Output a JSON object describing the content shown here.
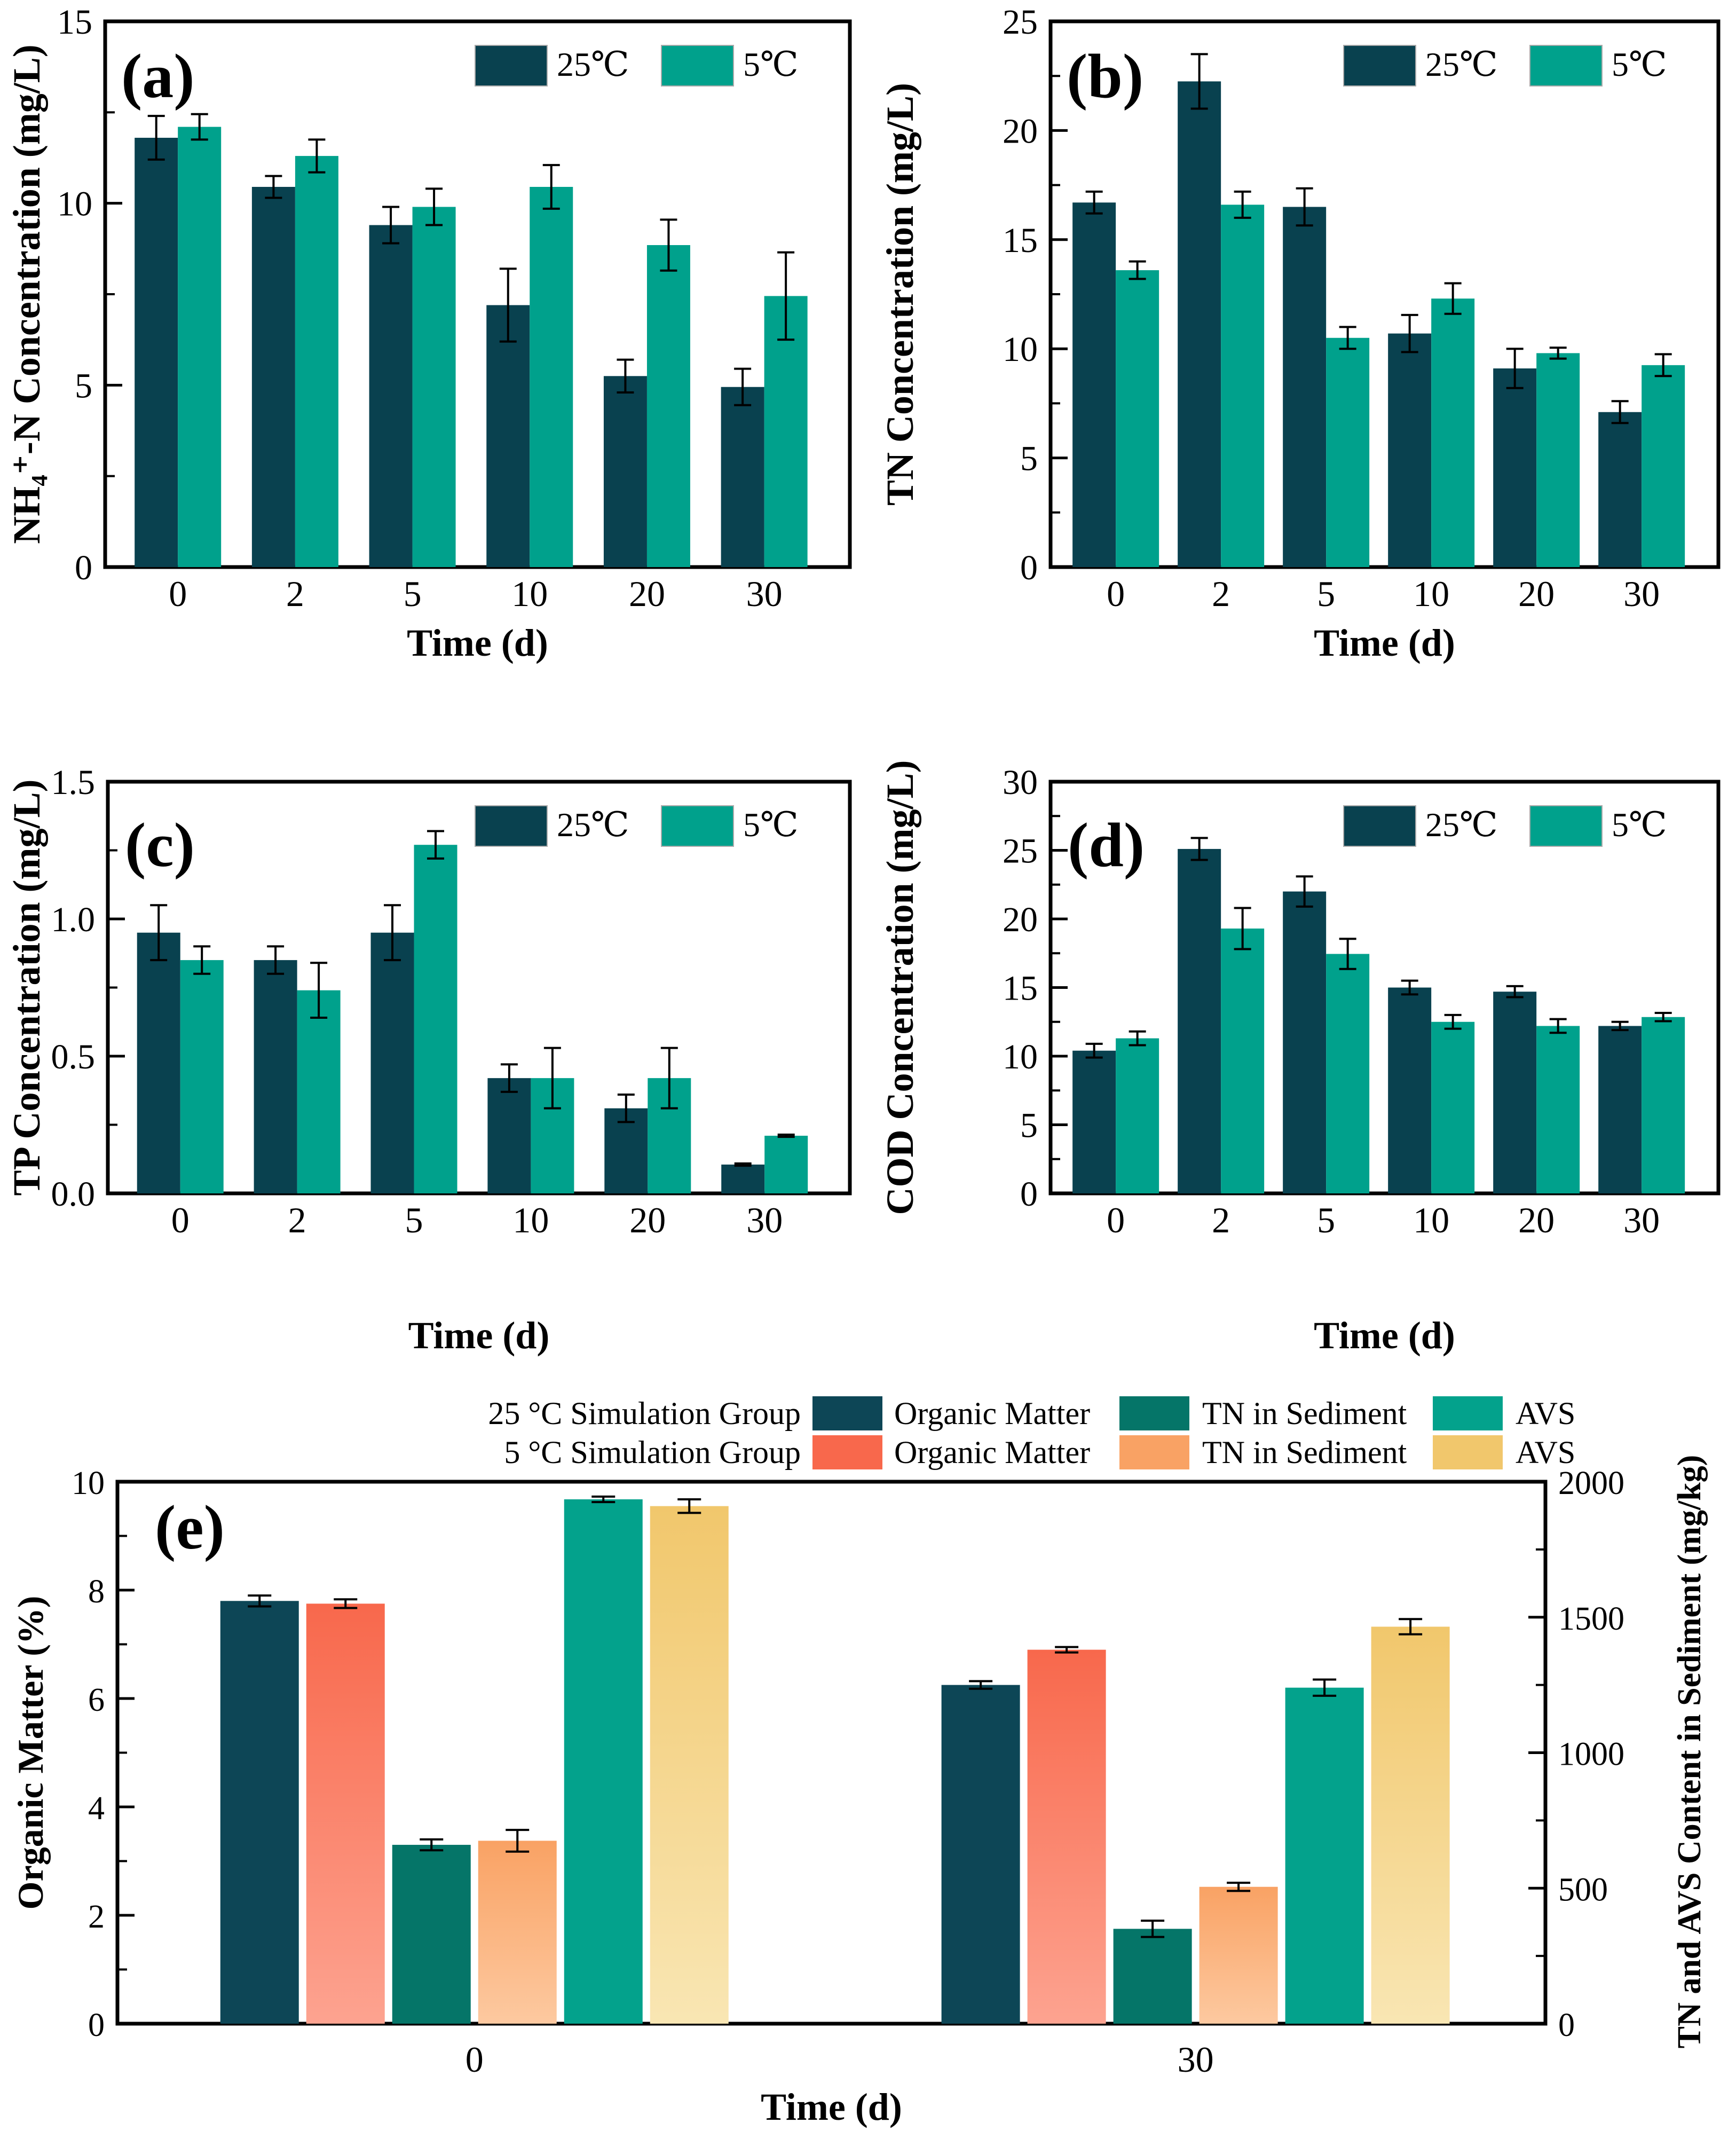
{
  "figure": {
    "background": "#ffffff",
    "accent_colors": {
      "dark_teal_25C": "#09414f",
      "green_5C": "#00a18c",
      "tn_teal": "#057568",
      "avs_green": "#03a28c",
      "coral": "#f8684c",
      "orange": "#f9a264",
      "yellow": "#f1c76c"
    }
  },
  "chart_data": [
    {
      "id": "a",
      "type": "bar",
      "panel_label": "(a)",
      "xlabel": "Time (d)",
      "ylabel": "NH₄⁺-N Concentration (mg/L)",
      "categories": [
        "0",
        "2",
        "5",
        "10",
        "20",
        "30"
      ],
      "ylim": [
        0,
        15
      ],
      "yticks": [
        "0",
        "5",
        "10",
        "15"
      ],
      "grid": false,
      "legend": {
        "position": "top-right",
        "entries": [
          "25℃",
          "5℃"
        ]
      },
      "series": [
        {
          "name": "25℃",
          "color": "#09414f",
          "values": [
            11.8,
            10.45,
            9.4,
            7.2,
            5.25,
            4.95
          ],
          "errors": [
            0.6,
            0.3,
            0.5,
            1.0,
            0.45,
            0.5
          ]
        },
        {
          "name": "5℃",
          "color": "#00a18c",
          "values": [
            12.1,
            11.3,
            9.9,
            10.45,
            8.85,
            7.45
          ],
          "errors": [
            0.35,
            0.45,
            0.5,
            0.6,
            0.7,
            1.2
          ]
        }
      ]
    },
    {
      "id": "b",
      "type": "bar",
      "panel_label": "(b)",
      "xlabel": "Time (d)",
      "ylabel": "TN Concentration (mg/L)",
      "categories": [
        "0",
        "2",
        "5",
        "10",
        "20",
        "30"
      ],
      "ylim": [
        0,
        25
      ],
      "yticks": [
        "0",
        "5",
        "10",
        "15",
        "20",
        "25"
      ],
      "grid": false,
      "legend": {
        "position": "top-right",
        "entries": [
          "25℃",
          "5℃"
        ]
      },
      "series": [
        {
          "name": "25℃",
          "color": "#09414f",
          "values": [
            16.7,
            22.25,
            16.5,
            10.7,
            9.1,
            7.1
          ],
          "errors": [
            0.5,
            1.25,
            0.85,
            0.85,
            0.9,
            0.5
          ]
        },
        {
          "name": "5℃",
          "color": "#00a18c",
          "values": [
            13.6,
            16.6,
            10.5,
            12.3,
            9.8,
            9.25
          ],
          "errors": [
            0.4,
            0.6,
            0.5,
            0.7,
            0.25,
            0.5
          ]
        }
      ]
    },
    {
      "id": "c",
      "type": "bar",
      "panel_label": "(c)",
      "xlabel": "Time (d)",
      "ylabel": "TP Concentration (mg/L)",
      "categories": [
        "0",
        "2",
        "5",
        "10",
        "20",
        "30"
      ],
      "ylim": [
        0,
        1.5
      ],
      "yticks": [
        "0.0",
        "0.5",
        "1.0",
        "1.5"
      ],
      "grid": false,
      "legend": {
        "position": "top-right",
        "entries": [
          "25℃",
          "5℃"
        ]
      },
      "series": [
        {
          "name": "25℃",
          "color": "#09414f",
          "values": [
            0.95,
            0.85,
            0.95,
            0.42,
            0.31,
            0.105
          ],
          "errors": [
            0.1,
            0.05,
            0.1,
            0.05,
            0.05,
            0.004
          ]
        },
        {
          "name": "5℃",
          "color": "#00a18c",
          "values": [
            0.85,
            0.74,
            1.27,
            0.42,
            0.42,
            0.21
          ],
          "errors": [
            0.05,
            0.1,
            0.05,
            0.11,
            0.11,
            0.004
          ]
        }
      ]
    },
    {
      "id": "d",
      "type": "bar",
      "panel_label": "(d)",
      "xlabel": "Time (d)",
      "ylabel": "COD Concentration (mg/L)",
      "categories": [
        "0",
        "2",
        "5",
        "10",
        "20",
        "30"
      ],
      "ylim": [
        0,
        30
      ],
      "yticks": [
        "0",
        "5",
        "10",
        "15",
        "20",
        "25",
        "30"
      ],
      "grid": false,
      "legend": {
        "position": "top-right",
        "entries": [
          "25℃",
          "5℃"
        ]
      },
      "series": [
        {
          "name": "25℃",
          "color": "#09414f",
          "values": [
            10.4,
            25.1,
            22.0,
            15.0,
            14.7,
            12.2
          ],
          "errors": [
            0.5,
            0.8,
            1.1,
            0.5,
            0.4,
            0.3
          ]
        },
        {
          "name": "5℃",
          "color": "#00a18c",
          "values": [
            11.3,
            19.3,
            17.45,
            12.5,
            12.2,
            12.85
          ],
          "errors": [
            0.5,
            1.5,
            1.1,
            0.5,
            0.5,
            0.3
          ]
        }
      ]
    },
    {
      "id": "e",
      "type": "bar",
      "panel_label": "(e)",
      "xlabel": "Time (d)",
      "ylabel_left": "Organic Matter (%)",
      "ylabel_right": "TN and AVS Content in Sediment (mg/kg)",
      "categories": [
        "0",
        "30"
      ],
      "ylim": [
        0,
        10
      ],
      "yticks": [
        "0",
        "2",
        "4",
        "6",
        "8",
        "10"
      ],
      "ylim_right": [
        0,
        2000
      ],
      "yticks_right": [
        "0",
        "500",
        "1000",
        "1500",
        "2000"
      ],
      "grid": false,
      "legend_rows": [
        {
          "group": "25 °C Simulation Group",
          "entries": [
            {
              "label": "Organic Matter",
              "color": "#0d4656"
            },
            {
              "label": "TN in Sediment",
              "color": "#057568"
            },
            {
              "label": "AVS",
              "color": "#03a28c"
            }
          ]
        },
        {
          "group": "5 °C Simulation Group",
          "entries": [
            {
              "label": "Organic Matter",
              "color": "#f8684c"
            },
            {
              "label": "TN in Sediment",
              "color": "#f9a264"
            },
            {
              "label": "AVS",
              "color": "#f1c76c"
            }
          ]
        }
      ],
      "series": [
        {
          "name": "Organic Matter 25 °C",
          "axis": "left",
          "color": "#0d4656",
          "values": [
            7.8,
            6.25
          ],
          "errors": [
            0.1,
            0.07
          ]
        },
        {
          "name": "Organic Matter 5 °C",
          "axis": "left",
          "color": "#f8684c",
          "color_bottom": "#fda390",
          "values": [
            7.75,
            6.9
          ],
          "errors": [
            0.08,
            0.05
          ]
        },
        {
          "name": "TN in Sediment 25 °C",
          "axis": "right",
          "color": "#057568",
          "values": [
            660,
            350
          ],
          "errors": [
            20,
            30
          ]
        },
        {
          "name": "TN in Sediment 5 °C",
          "axis": "right",
          "color": "#f9a264",
          "color_bottom": "#fdc9a0",
          "values": [
            675,
            505
          ],
          "errors": [
            40,
            15
          ]
        },
        {
          "name": "AVS 25 °C",
          "axis": "right",
          "color": "#03a28c",
          "values": [
            1935,
            1240
          ],
          "errors": [
            10,
            30
          ]
        },
        {
          "name": "AVS 5 °C",
          "axis": "right",
          "color": "#f1c76c",
          "color_bottom": "#f9e6b3",
          "values": [
            1910,
            1465
          ],
          "errors": [
            25,
            28
          ]
        }
      ]
    }
  ]
}
